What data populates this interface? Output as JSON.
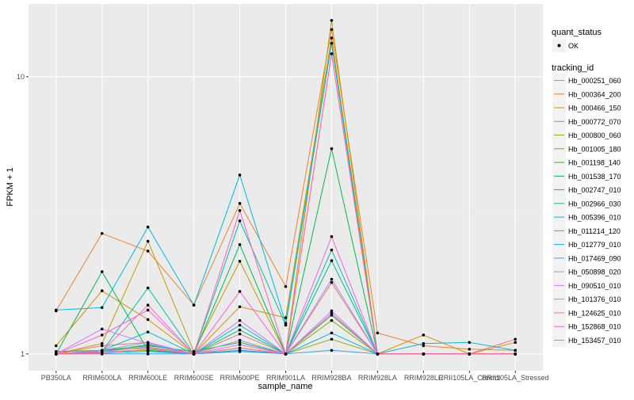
{
  "chart_data": {
    "type": "line",
    "xlabel": "sample_name",
    "ylabel": "FPKM + 1",
    "y_scale": "log10",
    "ylim": [
      0.87,
      18.3
    ],
    "y_ticks": [
      1,
      10
    ],
    "y_tick_labels": [
      "1",
      "10"
    ],
    "grid": true,
    "legend_position": "right",
    "categories": [
      "PB350LA",
      "RRIM600LA",
      "RRIM600LE",
      "RRIM600SE",
      "RRIM600PE",
      "RRIM901LA",
      "RRIM928BA",
      "RRIM928LA",
      "RRIM928LE",
      "RRII105LA_Control",
      "RRII105LA_Stressed"
    ],
    "point_legend": {
      "title": "quant_status",
      "entries": [
        "OK"
      ],
      "color": "#000000"
    },
    "line_legend_title": "tracking_id",
    "series": [
      {
        "name": "Hb_000251_060",
        "color": "#F8766D",
        "values": [
          1,
          1.07,
          1.1,
          1,
          1.18,
          1,
          1.81,
          1,
          1,
          1,
          1.13
        ]
      },
      {
        "name": "Hb_000364_200",
        "color": "#EA8331",
        "values": [
          1.43,
          2.72,
          2.35,
          1.5,
          3.49,
          1.75,
          14.8,
          1.19,
          1.07,
          1.04,
          1.03
        ]
      },
      {
        "name": "Hb_000466_150",
        "color": "#D89000",
        "values": [
          1.07,
          1.69,
          1.33,
          1,
          1.48,
          1.35,
          13.8,
          1,
          1.17,
          1,
          1.1
        ]
      },
      {
        "name": "Hb_000772_070",
        "color": "#C09B00",
        "values": [
          1,
          1.09,
          2.55,
          1.02,
          2.16,
          1,
          15.96,
          1,
          1,
          1,
          1
        ]
      },
      {
        "name": "Hb_000800_060",
        "color": "#A3A500",
        "values": [
          1,
          1.02,
          1.03,
          1,
          1.05,
          1,
          1.13,
          1,
          1,
          1,
          1
        ]
      },
      {
        "name": "Hb_001005_180",
        "color": "#7CAE00",
        "values": [
          1,
          1.03,
          1.05,
          1,
          1.03,
          1,
          1.32,
          1,
          1,
          1,
          1
        ]
      },
      {
        "name": "Hb_001198_140",
        "color": "#39B600",
        "values": [
          1.02,
          1.03,
          1.07,
          1.02,
          1.1,
          1,
          1.38,
          1,
          1,
          1,
          1
        ]
      },
      {
        "name": "Hb_001538_170",
        "color": "#00BB4E",
        "values": [
          1,
          1.98,
          1.03,
          1,
          2.48,
          1,
          5.5,
          1,
          1,
          1,
          1
        ]
      },
      {
        "name": "Hb_002747_010",
        "color": "#00BF7D",
        "values": [
          1,
          1.02,
          1.08,
          1,
          1.22,
          1,
          2.17,
          1,
          1,
          1,
          1
        ]
      },
      {
        "name": "Hb_002966_030",
        "color": "#00C1A3",
        "values": [
          1,
          1.02,
          1.73,
          1,
          3.02,
          1.27,
          13.2,
          1,
          1,
          1,
          1
        ]
      },
      {
        "name": "Hb_005396_010",
        "color": "#00BFC4",
        "values": [
          1,
          1.03,
          1.2,
          1,
          1.27,
          1,
          2.37,
          1,
          1,
          1,
          1
        ]
      },
      {
        "name": "Hb_011214_120",
        "color": "#00BAE0",
        "values": [
          1.44,
          1.47,
          2.87,
          1.5,
          4.42,
          1.29,
          13.2,
          1,
          1.09,
          1.1,
          1.03
        ]
      },
      {
        "name": "Hb_012779_010",
        "color": "#00B0F6",
        "values": [
          1,
          1.01,
          1.02,
          1,
          1.03,
          1,
          1.19,
          1,
          1,
          1,
          1
        ]
      },
      {
        "name": "Hb_017469_090",
        "color": "#35A2FF",
        "values": [
          1,
          1,
          1,
          1,
          1.02,
          1,
          1.03,
          1,
          1,
          1,
          1
        ]
      },
      {
        "name": "Hb_050898_020",
        "color": "#9590FF",
        "values": [
          1,
          1.03,
          1.1,
          1,
          1.12,
          1,
          1.86,
          1,
          1,
          1,
          1
        ]
      },
      {
        "name": "Hb_090510_010",
        "color": "#C77CFF",
        "values": [
          1,
          1.23,
          1.09,
          1,
          1.32,
          1,
          1.43,
          1,
          1,
          1,
          1
        ]
      },
      {
        "name": "Hb_101376_010",
        "color": "#E76BF3",
        "values": [
          1,
          1.02,
          1.06,
          1,
          1.08,
          1,
          1.4,
          1,
          1,
          1,
          1
        ]
      },
      {
        "name": "Hb_124625_010",
        "color": "#FA62DB",
        "values": [
          1,
          1.17,
          1.44,
          1,
          1.68,
          1,
          2.65,
          1,
          1,
          1,
          1
        ]
      },
      {
        "name": "Hb_152868_010",
        "color": "#FF62BC",
        "values": [
          1,
          1.02,
          1.5,
          1,
          3.29,
          1,
          12.1,
          1,
          1,
          1,
          1
        ]
      },
      {
        "name": "Hb_153457_010",
        "color": "#FF6C91",
        "values": [
          1,
          1,
          1.04,
          1,
          1.05,
          1,
          12.1,
          1,
          1,
          1,
          1
        ]
      }
    ]
  }
}
